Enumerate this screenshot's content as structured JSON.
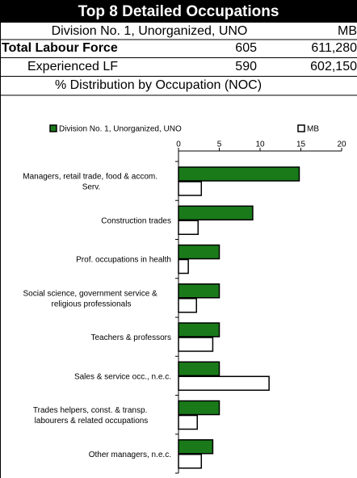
{
  "header": {
    "title": "Top 8 Detailed Occupations",
    "columns": [
      "Division No. 1, Unorganized, UNO",
      "MB"
    ],
    "rows": [
      [
        "Total Labour Force",
        "605",
        "611,280"
      ],
      [
        "Experienced LF",
        "590",
        "602,150"
      ]
    ],
    "section": "% Distribution by Occupation (NOC)"
  },
  "chart_data": {
    "type": "hbar",
    "categories": [
      "Managers, retail trade, food & accom. Serv.",
      "Construction trades",
      "Prof. occupations in health",
      "Social science, government service & religious professionals",
      "Teachers & professors",
      "Sales & service occ., n.e.c.",
      "Trades helpers, const. & transp. labourers & related occupations",
      "Other managers, n.e.c."
    ],
    "series": [
      {
        "name": "Division No. 1, Unorganized, UNO",
        "color": "#1a7a1a",
        "values": [
          14.8,
          9.1,
          5.0,
          5.0,
          5.0,
          5.0,
          5.0,
          4.2
        ]
      },
      {
        "name": "MB",
        "color": "#ffffff",
        "values": [
          2.8,
          2.4,
          1.2,
          2.2,
          4.2,
          11.1,
          2.3,
          2.8
        ]
      }
    ],
    "xlim": [
      0,
      20
    ],
    "xticks": [
      0,
      5,
      10,
      15,
      20
    ]
  }
}
